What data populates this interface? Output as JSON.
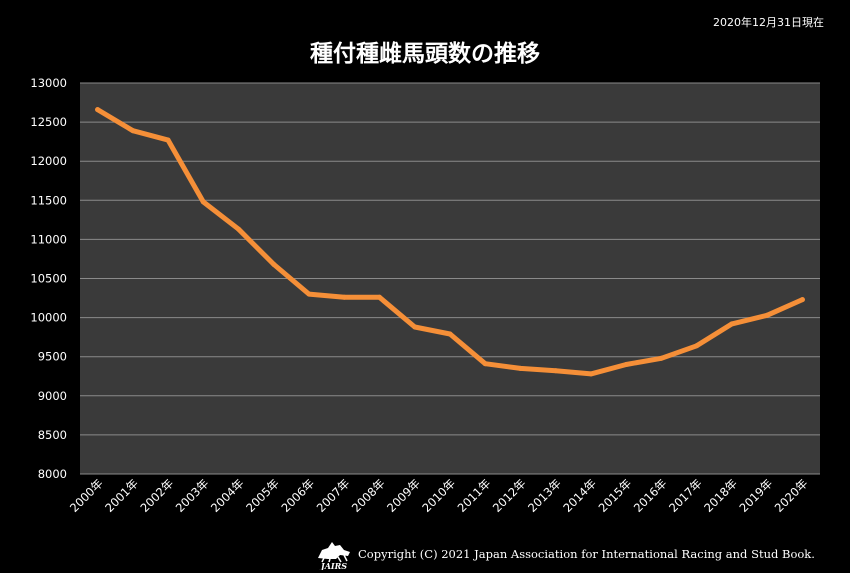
{
  "header": {
    "as_of": "2020年12月31日現在",
    "title": "種付種雌馬頭数の推移"
  },
  "chart_data": {
    "type": "line",
    "title": "種付種雌馬頭数の推移",
    "categories": [
      "2000年",
      "2001年",
      "2002年",
      "2003年",
      "2004年",
      "2005年",
      "2006年",
      "2007年",
      "2008年",
      "2009年",
      "2010年",
      "2011年",
      "2012年",
      "2013年",
      "2014年",
      "2015年",
      "2016年",
      "2017年",
      "2018年",
      "2019年",
      "2020年"
    ],
    "series": [
      {
        "values": [
          12660,
          12390,
          12270,
          11480,
          11130,
          10680,
          10300,
          10260,
          10260,
          9880,
          9790,
          9410,
          9350,
          9320,
          9280,
          9400,
          9480,
          9640,
          9920,
          10030,
          10230
        ]
      }
    ],
    "yticks": [
      "13000",
      "12500",
      "12000",
      "11500",
      "11000",
      "10500",
      "10000",
      "9500",
      "9000",
      "8500",
      "8000"
    ],
    "ylim": [
      8000,
      13000
    ],
    "grid": true,
    "line_color": "#f58f38",
    "plot_background": "#3a3a3a",
    "grid_color": "#8a8a8a"
  },
  "footer": {
    "logo_text": "JAIRS",
    "copyright": "Copyright (C) 2021 Japan Association for International Racing and Stud Book."
  }
}
